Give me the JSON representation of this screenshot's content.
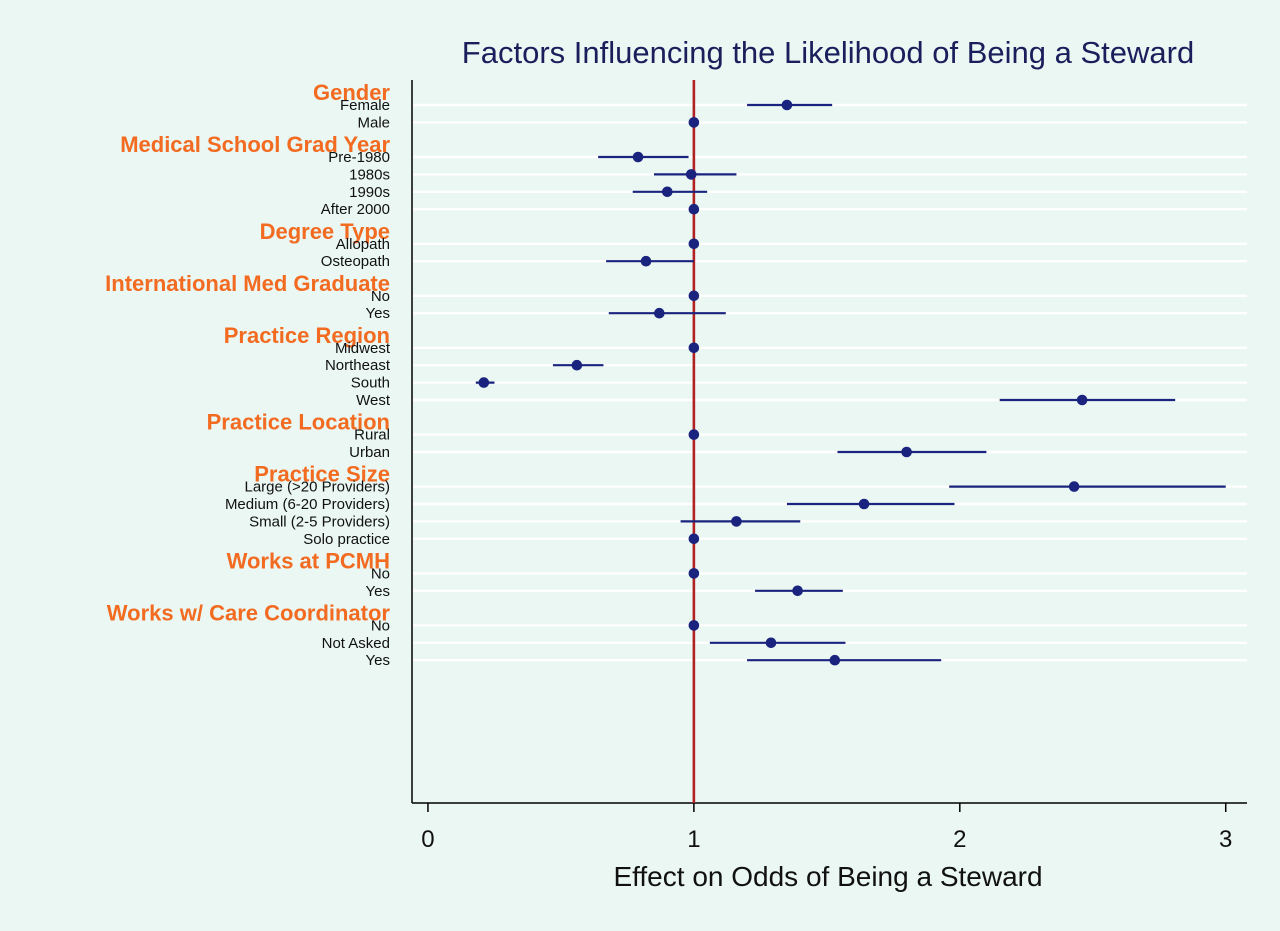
{
  "colors": {
    "background": "#eaf7f3",
    "plot_background": "#eaf7f3",
    "gridline": "#ffffff",
    "title": "#1a1f5c",
    "group_label": "#f26b21",
    "marker": "#1a237e",
    "reference_line": "#b22222"
  },
  "chart_data": {
    "type": "scatter",
    "subtype": "forest-plot",
    "title": "Factors Influencing the Likelihood of Being a Steward",
    "xlabel": "Effect on Odds of Being a Steward",
    "xlim": [
      -0.06,
      3.08
    ],
    "xticks": [
      0,
      1,
      2,
      3
    ],
    "reference_x": 1,
    "grid": "horizontal",
    "groups": [
      {
        "name": "Gender",
        "rows": [
          {
            "label": "Female",
            "estimate": 1.35,
            "lower": 1.2,
            "upper": 1.52
          },
          {
            "label": "Male",
            "estimate": 1.0
          }
        ]
      },
      {
        "name": "Medical School Grad Year",
        "rows": [
          {
            "label": "Pre-1980",
            "estimate": 0.79,
            "lower": 0.64,
            "upper": 0.98
          },
          {
            "label": "1980s",
            "estimate": 0.99,
            "lower": 0.85,
            "upper": 1.16
          },
          {
            "label": "1990s",
            "estimate": 0.9,
            "lower": 0.77,
            "upper": 1.05
          },
          {
            "label": "After 2000",
            "estimate": 1.0
          }
        ]
      },
      {
        "name": "Degree Type",
        "rows": [
          {
            "label": "Allopath",
            "estimate": 1.0
          },
          {
            "label": "Osteopath",
            "estimate": 0.82,
            "lower": 0.67,
            "upper": 1.0
          }
        ]
      },
      {
        "name": "International Med Graduate",
        "rows": [
          {
            "label": "No",
            "estimate": 1.0
          },
          {
            "label": "Yes",
            "estimate": 0.87,
            "lower": 0.68,
            "upper": 1.12
          }
        ]
      },
      {
        "name": "Practice Region",
        "rows": [
          {
            "label": "Midwest",
            "estimate": 1.0
          },
          {
            "label": "Northeast",
            "estimate": 0.56,
            "lower": 0.47,
            "upper": 0.66
          },
          {
            "label": "South",
            "estimate": 0.21,
            "lower": 0.18,
            "upper": 0.25
          },
          {
            "label": "West",
            "estimate": 2.46,
            "lower": 2.15,
            "upper": 2.81
          }
        ]
      },
      {
        "name": "Practice Location",
        "rows": [
          {
            "label": "Rural",
            "estimate": 1.0
          },
          {
            "label": "Urban",
            "estimate": 1.8,
            "lower": 1.54,
            "upper": 2.1
          }
        ]
      },
      {
        "name": "Practice Size",
        "rows": [
          {
            "label": "Large (>20 Providers)",
            "estimate": 2.43,
            "lower": 1.96,
            "upper": 3.0
          },
          {
            "label": "Medium (6-20 Providers)",
            "estimate": 1.64,
            "lower": 1.35,
            "upper": 1.98
          },
          {
            "label": "Small (2-5 Providers)",
            "estimate": 1.16,
            "lower": 0.95,
            "upper": 1.4
          },
          {
            "label": "Solo practice",
            "estimate": 1.0
          }
        ]
      },
      {
        "name": "Works at PCMH",
        "rows": [
          {
            "label": "No",
            "estimate": 1.0
          },
          {
            "label": "Yes",
            "estimate": 1.39,
            "lower": 1.23,
            "upper": 1.56
          }
        ]
      },
      {
        "name": "Works w/ Care Coordinator",
        "rows": [
          {
            "label": "No",
            "estimate": 1.0
          },
          {
            "label": "Not Asked",
            "estimate": 1.29,
            "lower": 1.06,
            "upper": 1.57
          },
          {
            "label": "Yes",
            "estimate": 1.53,
            "lower": 1.2,
            "upper": 1.93
          }
        ]
      }
    ]
  }
}
